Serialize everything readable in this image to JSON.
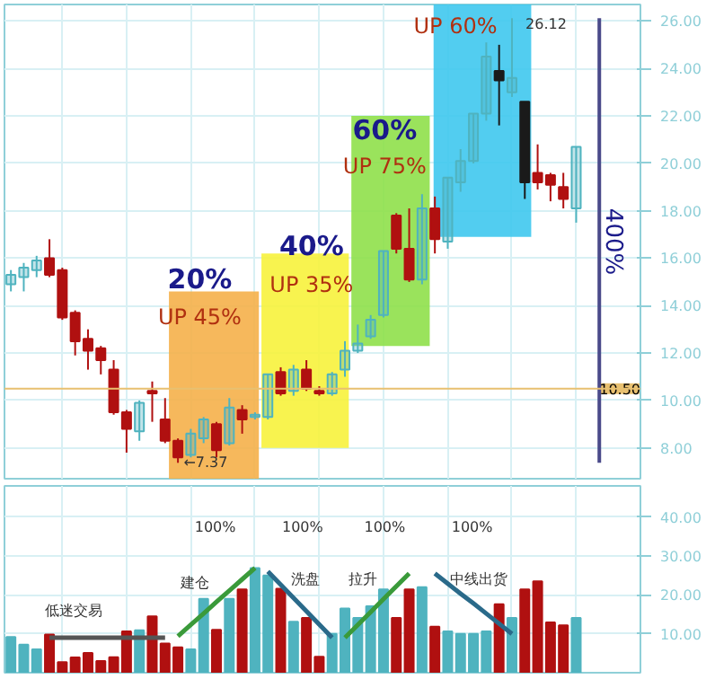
{
  "chart_data": [
    {
      "type": "candlestick",
      "categories": [
        null,
        null,
        null,
        null,
        null,
        null,
        null,
        null,
        null,
        null,
        null,
        null,
        null,
        null,
        null,
        null,
        null,
        null,
        null,
        null,
        null,
        null,
        null,
        null,
        null,
        null,
        null,
        null,
        null,
        null,
        null,
        null,
        null,
        null,
        null,
        null,
        null,
        null,
        null,
        null,
        null,
        null,
        null,
        null,
        null
      ],
      "ohlc": [
        [
          14.9,
          15.5,
          14.6,
          15.3
        ],
        [
          15.2,
          15.8,
          14.6,
          15.6
        ],
        [
          15.5,
          16.1,
          15.2,
          15.9
        ],
        [
          16.0,
          16.8,
          15.2,
          15.3
        ],
        [
          15.5,
          15.6,
          13.4,
          13.5
        ],
        [
          13.7,
          13.8,
          11.9,
          12.5
        ],
        [
          12.6,
          13.0,
          11.3,
          12.1
        ],
        [
          12.2,
          12.3,
          11.1,
          11.7
        ],
        [
          11.3,
          11.7,
          9.4,
          9.5
        ],
        [
          9.5,
          9.6,
          7.8,
          8.8
        ],
        [
          8.7,
          10.0,
          8.3,
          9.9
        ],
        [
          10.4,
          10.8,
          9.1,
          10.3
        ],
        [
          9.2,
          10.1,
          8.2,
          8.3
        ],
        [
          8.3,
          8.4,
          7.37,
          7.6
        ],
        [
          7.7,
          8.8,
          7.6,
          8.6
        ],
        [
          8.4,
          9.3,
          8.2,
          9.2
        ],
        [
          9.0,
          9.1,
          7.6,
          7.9
        ],
        [
          8.2,
          10.1,
          8.1,
          9.7
        ],
        [
          9.6,
          9.8,
          8.6,
          9.2
        ],
        [
          9.3,
          9.5,
          9.2,
          9.4
        ],
        [
          9.3,
          11.1,
          9.2,
          11.1
        ],
        [
          11.2,
          11.4,
          10.2,
          10.3
        ],
        [
          10.4,
          11.5,
          10.2,
          11.3
        ],
        [
          11.3,
          11.7,
          10.4,
          10.5
        ],
        [
          10.4,
          10.6,
          10.2,
          10.3
        ],
        [
          10.3,
          11.2,
          10.2,
          11.1
        ],
        [
          11.3,
          12.5,
          11.0,
          12.1
        ],
        [
          12.1,
          13.2,
          12.0,
          12.4
        ],
        [
          12.7,
          13.6,
          12.6,
          13.4
        ],
        [
          13.6,
          16.3,
          13.5,
          16.3
        ],
        [
          17.8,
          17.9,
          16.2,
          16.4
        ],
        [
          16.4,
          18.1,
          15.0,
          15.1
        ],
        [
          15.1,
          18.7,
          14.9,
          18.1
        ],
        [
          18.1,
          18.6,
          16.2,
          16.8
        ],
        [
          16.7,
          19.4,
          16.4,
          19.4
        ],
        [
          19.2,
          20.6,
          18.8,
          20.1
        ],
        [
          20.1,
          22.1,
          20.0,
          22.1
        ],
        [
          22.1,
          25.1,
          21.8,
          24.5
        ],
        [
          23.9,
          25.0,
          21.6,
          23.5
        ],
        [
          23.0,
          26.12,
          22.8,
          23.6
        ],
        [
          22.6,
          22.6,
          18.5,
          19.2
        ],
        [
          19.6,
          20.8,
          18.9,
          19.2
        ],
        [
          19.5,
          19.6,
          18.4,
          19.1
        ],
        [
          19.0,
          19.6,
          18.1,
          18.5
        ],
        [
          18.1,
          20.7,
          17.5,
          20.7
        ]
      ],
      "colors": [
        "#4fb3bf",
        "#4fb3bf",
        "#4fb3bf",
        "#b01010",
        "#b01010",
        "#b01010",
        "#b01010",
        "#b01010",
        "#b01010",
        "#b01010",
        "#4fb3bf",
        "#b01010",
        "#b01010",
        "#b01010",
        "#4fb3bf",
        "#4fb3bf",
        "#b01010",
        "#4fb3bf",
        "#b01010",
        "#4fb3bf",
        "#4fb3bf",
        "#b01010",
        "#4fb3bf",
        "#b01010",
        "#b01010",
        "#4fb3bf",
        "#4fb3bf",
        "#4fb3bf",
        "#4fb3bf",
        "#4fb3bf",
        "#b01010",
        "#b01010",
        "#4fb3bf",
        "#b01010",
        "#4fb3bf",
        "#4fb3bf",
        "#4fb3bf",
        "#4fb3bf",
        "#1a1a1a",
        "#4fb3bf",
        "#1a1a1a",
        "#b01010",
        "#b01010",
        "#b01010",
        "#4fb3bf"
      ],
      "ylim": [
        6.7,
        26.7
      ],
      "yticks": [
        {
          "value": 8,
          "label": "8.00"
        },
        {
          "value": 10,
          "label": "10.00"
        },
        {
          "value": 12,
          "label": "12.00"
        },
        {
          "value": 14,
          "label": "14.00"
        },
        {
          "value": 16,
          "label": "16.00"
        },
        {
          "value": 18,
          "label": "18.00"
        },
        {
          "value": 20,
          "label": "20.00"
        },
        {
          "value": 22,
          "label": "22.00"
        },
        {
          "value": 24,
          "label": "24.00"
        },
        {
          "value": 26,
          "label": "26.00"
        }
      ],
      "tick_labels": "y",
      "grid": true,
      "bands": [
        {
          "axis": "y",
          "from": 6.7,
          "to": 14.6,
          "color": "#f5b04a"
        },
        {
          "axis": "y",
          "from": 8.0,
          "to": 16.2,
          "color": "#f7f23c"
        },
        {
          "axis": "y",
          "from": 12.3,
          "to": 22.0,
          "color": "#8fe04a"
        },
        {
          "axis": "y",
          "from": 16.9,
          "to": 26.7,
          "color": "#3fc8ee"
        }
      ],
      "ref_lines": [
        {
          "axis": "y",
          "value": 10.5,
          "label": "10.50",
          "color": "#e8c070"
        }
      ],
      "annotations": [
        "20%",
        "UP 45%",
        "40%",
        "UP 35%",
        "60%",
        "UP 75%",
        "UP 60%",
        "←7.37",
        "26.12",
        "400%"
      ]
    },
    {
      "type": "bar",
      "categories": [
        null,
        null,
        null,
        null,
        null,
        null,
        null,
        null,
        null,
        null,
        null,
        null,
        null,
        null,
        null,
        null,
        null,
        null,
        null,
        null,
        null,
        null,
        null,
        null,
        null,
        null,
        null,
        null,
        null,
        null,
        null,
        null,
        null,
        null,
        null,
        null,
        null,
        null,
        null,
        null,
        null,
        null,
        null,
        null,
        null
      ],
      "series": [
        {
          "type": "bar",
          "values": [
            9.2,
            7.2,
            6,
            9.8,
            2.7,
            3.9,
            5.1,
            3,
            4,
            10.6,
            10.9,
            14.5,
            7.5,
            6.5,
            6,
            19,
            11,
            19,
            21.4,
            26.9,
            25,
            21.6,
            13.1,
            14.1,
            4.1,
            10,
            16.5,
            14.1,
            17.1,
            21.4,
            14.1,
            21.4,
            22,
            11.8,
            10.6,
            10,
            10,
            10.6,
            17.6,
            14.1,
            21.4,
            23.5,
            12.9,
            12.2,
            14.1
          ],
          "colors": [
            "#4fb3bf",
            "#4fb3bf",
            "#4fb3bf",
            "#b01010",
            "#b01010",
            "#b01010",
            "#b01010",
            "#b01010",
            "#b01010",
            "#b01010",
            "#4fb3bf",
            "#b01010",
            "#b01010",
            "#b01010",
            "#4fb3bf",
            "#4fb3bf",
            "#b01010",
            "#4fb3bf",
            "#b01010",
            "#4fb3bf",
            "#4fb3bf",
            "#b01010",
            "#4fb3bf",
            "#b01010",
            "#b01010",
            "#4fb3bf",
            "#4fb3bf",
            "#4fb3bf",
            "#4fb3bf",
            "#4fb3bf",
            "#b01010",
            "#b01010",
            "#4fb3bf",
            "#b01010",
            "#4fb3bf",
            "#4fb3bf",
            "#4fb3bf",
            "#4fb3bf",
            "#b01010",
            "#4fb3bf",
            "#b01010",
            "#b01010",
            "#b01010",
            "#b01010",
            "#4fb3bf"
          ]
        },
        {
          "type": "line",
          "color": "#555555",
          "values": [
            null,
            null,
            null,
            9,
            9,
            9,
            9,
            9,
            9,
            9,
            9,
            9,
            9,
            null,
            null,
            null,
            null,
            null,
            null,
            null,
            null,
            null,
            null,
            null,
            null,
            null,
            null,
            null,
            null,
            null,
            null,
            null,
            null,
            null,
            null,
            null,
            null,
            null,
            null,
            null,
            null,
            null,
            null,
            null,
            null
          ]
        },
        {
          "type": "line",
          "color": "#3a9a3a",
          "values": [
            null,
            null,
            null,
            null,
            null,
            null,
            null,
            null,
            null,
            null,
            null,
            null,
            null,
            9.4,
            12.3,
            15.2,
            18.2,
            21.1,
            24,
            26.9,
            null,
            null,
            null,
            null,
            null,
            null,
            null,
            null,
            null,
            null,
            null,
            null,
            null,
            null,
            null,
            null,
            null,
            null,
            null,
            null,
            null,
            null,
            null,
            null,
            null
          ]
        },
        {
          "type": "line",
          "color": "#2a6a8a",
          "values": [
            null,
            null,
            null,
            null,
            null,
            null,
            null,
            null,
            null,
            null,
            null,
            null,
            null,
            null,
            null,
            null,
            null,
            null,
            null,
            null,
            26,
            22.6,
            19.2,
            15.8,
            12.4,
            9,
            null,
            null,
            null,
            null,
            null,
            null,
            null,
            null,
            null,
            null,
            null,
            null,
            null,
            null,
            null,
            null,
            null,
            null,
            null
          ]
        },
        {
          "type": "line",
          "color": "#3a9a3a",
          "values": [
            null,
            null,
            null,
            null,
            null,
            null,
            null,
            null,
            null,
            null,
            null,
            null,
            null,
            null,
            null,
            null,
            null,
            null,
            null,
            null,
            null,
            null,
            null,
            null,
            null,
            null,
            9,
            12.3,
            15.6,
            18.9,
            22.2,
            25.5,
            null,
            null,
            null,
            null,
            null,
            null,
            null,
            null,
            null,
            null,
            null,
            null,
            null
          ]
        },
        {
          "type": "line",
          "color": "#2a6a8a",
          "values": [
            null,
            null,
            null,
            null,
            null,
            null,
            null,
            null,
            null,
            null,
            null,
            null,
            null,
            null,
            null,
            null,
            null,
            null,
            null,
            null,
            null,
            null,
            null,
            null,
            null,
            null,
            null,
            null,
            null,
            null,
            null,
            null,
            null,
            25.5,
            22.9,
            20.3,
            17.8,
            15.2,
            12.6,
            10,
            null,
            null,
            null,
            null,
            null
          ]
        }
      ],
      "ylim": [
        0,
        48
      ],
      "yticks": [
        {
          "value": 10,
          "label": "10.00"
        },
        {
          "value": 20,
          "label": "20.00"
        },
        {
          "value": 30,
          "label": "30.00"
        },
        {
          "value": 40,
          "label": "40.00"
        }
      ],
      "tick_labels": "y",
      "grid": true,
      "annotations": [
        "低迷交易",
        "建仓",
        "洗盘",
        "拉升",
        "中线出货",
        "100%",
        "100%",
        "100%",
        "100%"
      ]
    }
  ]
}
